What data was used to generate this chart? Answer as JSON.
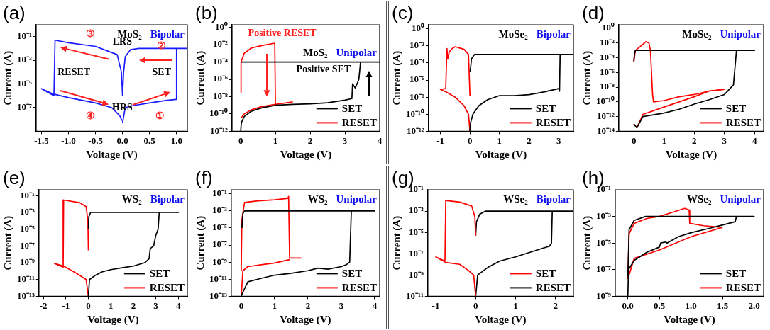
{
  "chart_data": [
    {
      "type": "line",
      "title": "MoS₂",
      "subtitle": "Bipolar",
      "xlabel": "Voltage (V)",
      "ylabel": "Current (A)",
      "log": "y",
      "annotations": [
        "(a)",
        "LRS",
        "HRS",
        "RESET",
        "SET",
        "①",
        "②",
        "③",
        "④"
      ],
      "xlim": [
        -1.6,
        1.2
      ],
      "ylim": [
        1e-09,
        1
      ],
      "xticks": [
        {
          "value": -1.5,
          "label": "-1.5"
        },
        {
          "value": -1,
          "label": "-1.0"
        },
        {
          "value": -0.5,
          "label": "-0.5"
        },
        {
          "value": 0,
          "label": "0.0"
        },
        {
          "value": 0.5,
          "label": "0.5"
        },
        {
          "value": 1,
          "label": "1.0"
        }
      ],
      "yticks": [
        {
          "value": 0.1,
          "label": "10⁻¹"
        },
        {
          "value": 0.001,
          "label": "10⁻³"
        },
        {
          "value": 1e-05,
          "label": "10⁻⁵"
        },
        {
          "value": 1e-07,
          "label": "10⁻⁷"
        }
      ],
      "series": [
        {
          "color": "#1a1aff",
          "x": [
            0,
            0.05,
            0.2,
            0.5,
            0.8,
            0.99,
            1.0,
            1.2,
            0.3,
            0.15,
            0.05,
            0.02,
            0,
            -0.02,
            -0.1,
            -0.5,
            -1.0,
            -1.25,
            -1.27,
            -1.5,
            -1.3,
            -1.0,
            -0.5,
            -0.2,
            -0.05,
            -0.01
          ],
          "values": [
            5e-09,
            1e-07,
            1.5e-07,
            2.5e-07,
            4e-07,
            5e-07,
            0.01,
            0.01,
            0.01,
            0.008,
            0.002,
            0.0001,
            1e-06,
            0.0001,
            0.003,
            0.015,
            0.03,
            0.05,
            1e-06,
            4e-06,
            1.5e-06,
            7e-07,
            2.5e-07,
            1e-07,
            2e-08,
            8e-09
          ]
        }
      ]
    },
    {
      "type": "line",
      "title": "MoS₂",
      "subtitle": "Unipolar",
      "xlabel": "Voltage (V)",
      "ylabel": "Current (A)",
      "log": "y",
      "legend": "bottom right",
      "annotations": [
        "(b)",
        "Positive RESET",
        "Positive SET"
      ],
      "xlim": [
        -0.25,
        4
      ],
      "ylim": [
        1e-12,
        2
      ],
      "xticks": [
        0,
        1,
        2,
        3,
        4
      ],
      "yticks": [
        {
          "value": 1,
          "label": "10⁰"
        },
        {
          "value": 0.01,
          "label": "10⁻²"
        },
        {
          "value": 0.0001,
          "label": "10⁻⁴"
        },
        {
          "value": 1e-06,
          "label": "10⁻⁶"
        },
        {
          "value": 1e-08,
          "label": "10⁻⁸"
        },
        {
          "value": 1e-10,
          "label": "10⁻¹⁰"
        },
        {
          "value": 1e-12,
          "label": "10⁻¹²"
        }
      ],
      "series": [
        {
          "name": "SET",
          "color": "#000000",
          "x": [
            0,
            0.02,
            0.1,
            0.3,
            0.6,
            1,
            1.5,
            2,
            2.5,
            3,
            3.2,
            3.22,
            3.3,
            3.4,
            3.45,
            4,
            0
          ],
          "values": [
            1e-12,
            1e-11,
            5e-11,
            2e-10,
            5e-10,
            1e-09,
            1.3e-09,
            1.5e-09,
            2e-09,
            4e-09,
            6e-09,
            3e-07,
            1e-07,
            1e-06,
            0.0001,
            0.0001,
            0.0001
          ]
        },
        {
          "name": "RESET",
          "color": "#ff0000",
          "x": [
            0,
            0.01,
            0.1,
            0.3,
            0.6,
            0.98,
            1.0
          ],
          "values": [
            3e-08,
            0.0001,
            0.001,
            0.004,
            0.008,
            0.015,
            1e-09
          ]
        },
        {
          "color": "#ff0000",
          "x": [
            0,
            0.1,
            0.3,
            0.6,
            1,
            1.5
          ],
          "values": [
            3e-11,
            1e-10,
            3e-10,
            7e-10,
            1.3e-09,
            2.5e-09
          ]
        }
      ]
    },
    {
      "type": "line",
      "title": "MoSe₂",
      "subtitle": "Bipolar",
      "xlabel": "Voltage (V)",
      "ylabel": "Current (A)",
      "log": "y",
      "legend": "bottom right",
      "annotations": [
        "(c)"
      ],
      "xlim": [
        -1.4,
        3.5
      ],
      "ylim": [
        1e-12,
        3
      ],
      "xticks": [
        -1,
        0,
        1,
        2,
        3
      ],
      "yticks": [
        {
          "value": 1,
          "label": "10⁰"
        },
        {
          "value": 0.01,
          "label": "10⁻²"
        },
        {
          "value": 0.0001,
          "label": "10⁻⁴"
        },
        {
          "value": 1e-06,
          "label": "10⁻⁶"
        },
        {
          "value": 1e-08,
          "label": "10⁻⁸"
        },
        {
          "value": 1e-10,
          "label": "10⁻¹⁰"
        },
        {
          "value": 1e-12,
          "label": "10⁻¹²"
        }
      ],
      "series": [
        {
          "name": "SET",
          "color": "#000000",
          "x": [
            0,
            0.02,
            0.1,
            0.3,
            0.6,
            1,
            1.5,
            2,
            2.5,
            3,
            3.03,
            3.05,
            3.5,
            0.15,
            0.05,
            0.01
          ],
          "values": [
            1e-12,
            1e-11,
            1e-10,
            1e-09,
            5e-09,
            1.5e-08,
            1.5e-08,
            2e-08,
            4e-08,
            1e-07,
            5e-08,
            0.001,
            0.001,
            0.001,
            0.0003,
            1e-05
          ]
        },
        {
          "name": "RESET",
          "color": "#ff0000",
          "x": [
            0,
            -0.05,
            -0.2,
            -0.5,
            -0.6,
            -0.7,
            -0.75,
            -0.78,
            -0.82,
            -1,
            -0.8,
            -0.5,
            -0.2,
            -0.05,
            0
          ],
          "values": [
            1.5e-08,
            0.001,
            0.004,
            0.008,
            0.005,
            0.002,
            0.0003,
            0.005,
            1e-07,
            8e-08,
            4e-08,
            1e-08,
            1e-09,
            1e-10,
            1e-12
          ]
        }
      ]
    },
    {
      "type": "line",
      "title": "MoSe₂",
      "subtitle": "Unipolar",
      "xlabel": "Voltage (V)",
      "ylabel": "Current (A)",
      "log": "y",
      "legend": "bottom right",
      "annotations": [
        "(d)"
      ],
      "xlim": [
        -0.5,
        4.3
      ],
      "ylim": [
        1e-14,
        3
      ],
      "xticks": [
        0,
        1,
        2,
        3,
        4
      ],
      "yticks": [
        {
          "value": 1,
          "label": "10⁰"
        },
        {
          "value": 0.01,
          "label": "10⁻²"
        },
        {
          "value": 0.0001,
          "label": "10⁻⁴"
        },
        {
          "value": 1e-06,
          "label": "10⁻⁶"
        },
        {
          "value": 1e-08,
          "label": "10⁻⁸"
        },
        {
          "value": 1e-10,
          "label": "10⁻¹⁰"
        },
        {
          "value": 1e-12,
          "label": "10⁻¹²"
        },
        {
          "value": 1e-14,
          "label": "10⁻¹⁴"
        }
      ],
      "series": [
        {
          "name": "SET",
          "color": "#000000",
          "x": [
            0,
            0.1,
            0.3,
            1,
            1.5,
            2,
            2.5,
            3,
            3.3,
            3.38,
            3.4,
            4,
            0.05,
            0.02,
            0
          ],
          "values": [
            1e-13,
            3e-14,
            1e-12,
            3e-12,
            1e-11,
            5e-11,
            2e-10,
            1e-09,
            2e-08,
            0.0001,
            0.001,
            0.001,
            0.001,
            0.0003,
            3e-05
          ]
        },
        {
          "name": "RESET",
          "color": "#ff0000",
          "x": [
            0,
            0.05,
            0.2,
            0.4,
            0.5,
            0.55,
            0.62,
            0.65,
            1,
            1.5,
            2,
            2.5,
            3
          ],
          "values": [
            3e-05,
            0.001,
            0.003,
            0.015,
            0.01,
            0.001,
            1e-09,
            1e-10,
            1.5e-10,
            5e-10,
            1e-09,
            3e-09,
            5e-09
          ]
        },
        {
          "color": "#ff0000",
          "x": [
            0,
            0.1,
            0.3,
            1,
            1.5,
            2,
            2.5,
            3
          ],
          "values": [
            1e-13,
            3e-14,
            2e-12,
            2e-11,
            1e-10,
            5e-10,
            3e-09,
            5e-09
          ]
        }
      ]
    },
    {
      "type": "line",
      "title": "WS₂",
      "subtitle": "Bipolar",
      "xlabel": "Voltage (V)",
      "ylabel": "Current (A)",
      "log": "y",
      "legend": "bottom right",
      "annotations": [
        "(e)"
      ],
      "xlim": [
        -2.2,
        4.4
      ],
      "ylim": [
        1e-13,
        0.5
      ],
      "xticks": [
        -2,
        -1,
        0,
        1,
        2,
        3,
        4
      ],
      "yticks": [
        {
          "value": 0.1,
          "label": "10⁻¹"
        },
        {
          "value": 0.001,
          "label": "10⁻³"
        },
        {
          "value": 1e-05,
          "label": "10⁻⁵"
        },
        {
          "value": 1e-07,
          "label": "10⁻⁷"
        },
        {
          "value": 1e-09,
          "label": "10⁻⁹"
        },
        {
          "value": 1e-11,
          "label": "10⁻¹¹"
        },
        {
          "value": 1e-13,
          "label": "10⁻¹³"
        }
      ],
      "series": [
        {
          "name": "SET",
          "color": "#000000",
          "x": [
            0,
            0.05,
            0.3,
            0.6,
            1,
            1.5,
            2,
            2.5,
            2.7,
            2.75,
            2.9,
            3.0,
            3.1,
            3.15,
            4,
            0.1,
            0.02,
            0
          ],
          "values": [
            1e-13,
            1e-11,
            3e-11,
            8e-11,
            1.5e-10,
            2.5e-10,
            4e-10,
            1e-09,
            3e-09,
            5e-08,
            1e-07,
            2e-06,
            1e-05,
            0.001,
            0.001,
            0.001,
            0.0003,
            1e-05
          ]
        },
        {
          "name": "RESET",
          "color": "#ff0000",
          "x": [
            0,
            -0.02,
            -0.1,
            -0.4,
            -1.1,
            -1.12,
            -1.5,
            -1.1,
            -0.5,
            -0.1,
            0
          ],
          "values": [
            3e-08,
            0.0001,
            0.005,
            0.015,
            0.03,
            3e-10,
            8e-10,
            4e-10,
            5e-11,
            1e-11,
            1e-13
          ]
        }
      ]
    },
    {
      "type": "line",
      "title": "WS₂",
      "subtitle": "Unipolar",
      "xlabel": "Voltage (V)",
      "ylabel": "Current (A)",
      "log": "y",
      "legend": "bottom right",
      "annotations": [
        "(f)"
      ],
      "xlim": [
        -0.3,
        4.15
      ],
      "ylim": [
        1e-13,
        0.3
      ],
      "xticks": [
        0,
        1,
        2,
        3,
        4
      ],
      "yticks": [
        {
          "value": 0.1,
          "label": "10⁻¹"
        },
        {
          "value": 0.001,
          "label": "10⁻³"
        },
        {
          "value": 1e-05,
          "label": "10⁻⁵"
        },
        {
          "value": 1e-07,
          "label": "10⁻⁷"
        },
        {
          "value": 1e-09,
          "label": "10⁻⁹"
        },
        {
          "value": 1e-11,
          "label": "10⁻¹¹"
        },
        {
          "value": 1e-13,
          "label": "10⁻¹³"
        }
      ],
      "series": [
        {
          "name": "SET",
          "color": "#000000",
          "x": [
            0,
            0.05,
            0.2,
            0.5,
            1,
            1.5,
            2,
            2.3,
            2.6,
            3,
            3.15,
            3.25,
            3.3,
            4,
            0.1,
            0.05,
            0.02
          ],
          "values": [
            1e-13,
            3e-13,
            5e-12,
            1e-11,
            3e-11,
            5e-11,
            1e-10,
            2e-10,
            1.5e-10,
            3e-10,
            5e-10,
            1e-09,
            0.001,
            0.001,
            0.001,
            0.0005,
            1e-05
          ]
        },
        {
          "name": "RESET",
          "color": "#ff0000",
          "x": [
            0,
            0.02,
            0.1,
            0.5,
            1,
            1.4,
            1.42,
            1.45,
            1.8
          ],
          "values": [
            1e-10,
            0.0001,
            0.01,
            0.015,
            0.02,
            0.03,
            0.05,
            3e-09,
            3e-09
          ]
        },
        {
          "color": "#ff0000",
          "x": [
            0,
            0.05,
            0.2,
            0.6,
            1,
            1.45
          ],
          "values": [
            1e-13,
            1e-10,
            3e-10,
            5e-10,
            8e-10,
            2e-09
          ]
        }
      ]
    },
    {
      "type": "line",
      "title": "WSe₂",
      "subtitle": "Bipolar",
      "xlabel": "Voltage (V)",
      "ylabel": "Current (A)",
      "log": "y",
      "legend": "bottom right",
      "annotations": [
        "(g)"
      ],
      "xlim": [
        -1.2,
        2.45
      ],
      "ylim": [
        1e-11,
        0.1
      ],
      "xticks": [
        -1,
        0,
        1,
        2
      ],
      "yticks": [
        {
          "value": 0.1,
          "label": "10⁻¹"
        },
        {
          "value": 0.001,
          "label": "10⁻³"
        },
        {
          "value": 1e-05,
          "label": "10⁻⁵"
        },
        {
          "value": 1e-07,
          "label": "10⁻⁷"
        },
        {
          "value": 1e-09,
          "label": "10⁻⁹"
        },
        {
          "value": 1e-11,
          "label": "10⁻¹¹"
        }
      ],
      "series": [
        {
          "name": "SET",
          "color": "#ff0000",
          "x": [
            0,
            -0.05,
            -0.2,
            -0.4,
            -0.75,
            -1,
            -0.77,
            -0.75,
            -0.4,
            -0.1,
            -0.02,
            0
          ],
          "values": [
            1e-11,
            1e-09,
            3e-09,
            1e-08,
            1.5e-08,
            5e-08,
            2e-08,
            0.01,
            0.007,
            0.003,
            0.0003,
            5e-06
          ]
        },
        {
          "name": "RESET",
          "color": "#000000",
          "x": [
            0,
            0.05,
            0.3,
            0.6,
            1,
            1.5,
            1.85,
            1.9,
            1.92,
            2.45,
            0.25,
            0.1,
            0.02,
            0
          ],
          "values": [
            1e-11,
            1e-09,
            5e-09,
            2e-08,
            5e-08,
            2e-07,
            5e-07,
            1e-06,
            0.001,
            0.001,
            0.001,
            0.0005,
            0.0001,
            5e-06
          ]
        }
      ]
    },
    {
      "type": "line",
      "title": "WSe₂",
      "subtitle": "Unipolar",
      "xlabel": "Voltage (V)",
      "ylabel": "Current (A)",
      "log": "y",
      "legend": "bottom right",
      "annotations": [
        "(h)"
      ],
      "xlim": [
        -0.2,
        2.15
      ],
      "ylim": [
        1e-09,
        0.1
      ],
      "xticks": [
        {
          "value": 0,
          "label": "0.0"
        },
        {
          "value": 0.5,
          "label": "0.5"
        },
        {
          "value": 1,
          "label": "1.0"
        },
        {
          "value": 1.5,
          "label": "1.5"
        },
        {
          "value": 2,
          "label": "2.0"
        }
      ],
      "yticks": [
        {
          "value": 0.1,
          "label": "10⁻¹"
        },
        {
          "value": 0.001,
          "label": "10⁻³"
        },
        {
          "value": 1e-05,
          "label": "10⁻⁵"
        },
        {
          "value": 1e-07,
          "label": "10⁻⁷"
        },
        {
          "value": 1e-09,
          "label": "10⁻⁹"
        }
      ],
      "series": [
        {
          "name": "SET",
          "color": "#000000",
          "x": [
            0,
            0.01,
            0.1,
            0.3,
            0.5,
            0.52,
            0.6,
            0.62,
            0.8,
            1,
            1.3,
            1.6,
            1.7,
            1.72,
            2,
            0.28,
            0.1,
            0.02,
            0
          ],
          "values": [
            1e-09,
            1e-07,
            5e-07,
            2e-06,
            5e-06,
            1e-05,
            1.2e-05,
            1e-05,
            3e-05,
            6e-05,
            0.00013,
            0.0003,
            0.0004,
            0.001,
            0.001,
            0.001,
            0.0005,
            0.0001,
            3e-08
          ]
        },
        {
          "name": "RESET",
          "color": "#ff0000",
          "x": [
            0,
            0.02,
            0.1,
            0.3,
            0.5,
            0.7,
            0.9,
            0.97,
            0.98,
            1.2,
            1.5
          ],
          "values": [
            2e-08,
            5e-05,
            0.0003,
            0.0007,
            0.001,
            0.002,
            0.004,
            0.003,
            0.0003,
            0.0002,
            0.00015
          ]
        },
        {
          "color": "#ff0000",
          "x": [
            0,
            0.1,
            0.5,
            1,
            1.5
          ],
          "values": [
            2e-08,
            7e-07,
            3e-06,
            3e-05,
            0.00015
          ]
        }
      ]
    }
  ]
}
